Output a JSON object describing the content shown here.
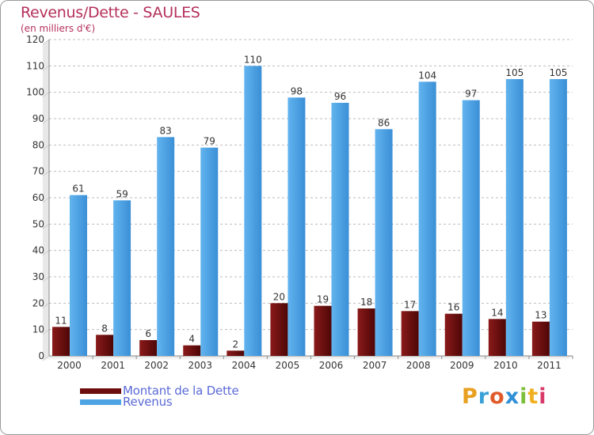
{
  "header": {
    "title": "Revenus/Dette - SAULES",
    "subtitle": "(en milliers d'€)"
  },
  "legend": {
    "items": [
      {
        "label": "Montant de la Dette",
        "color": "#6e0d0d"
      },
      {
        "label": "Revenus",
        "color": "#4ea3e3"
      }
    ]
  },
  "logo": {
    "letters": [
      "P",
      "r",
      "o",
      "x",
      "i",
      "t",
      "i"
    ],
    "colors": [
      "#e8a020",
      "#3aa0d8",
      "#e05a2a",
      "#2e8fd6",
      "#7cbf3a",
      "#f0b020",
      "#d83a6a"
    ]
  },
  "chart_data": {
    "type": "bar",
    "categories": [
      "2000",
      "2001",
      "2002",
      "2003",
      "2004",
      "2005",
      "2006",
      "2007",
      "2008",
      "2009",
      "2010",
      "2011"
    ],
    "series": [
      {
        "name": "Montant de la Dette",
        "color": "#6e0d0d",
        "values": [
          11,
          8,
          6,
          4,
          2,
          20,
          19,
          18,
          17,
          16,
          14,
          13
        ]
      },
      {
        "name": "Revenus",
        "color": "#4ea3e3",
        "values": [
          61,
          59,
          83,
          79,
          110,
          98,
          96,
          86,
          104,
          97,
          105,
          105
        ]
      }
    ],
    "ylim": [
      0,
      120
    ],
    "yticks": [
      0,
      10,
      20,
      30,
      40,
      50,
      60,
      70,
      80,
      90,
      100,
      110,
      120
    ],
    "grid": true
  }
}
